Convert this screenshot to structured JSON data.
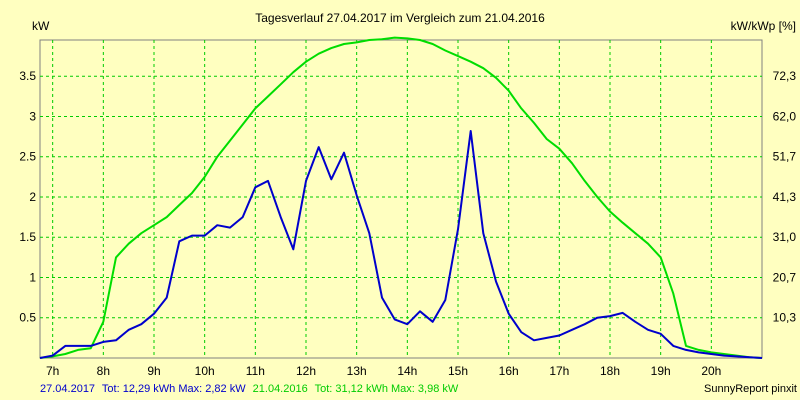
{
  "chart_data": {
    "type": "line",
    "title": "Tagesverlauf 27.04.2017 im Vergleich zum 21.04.2016",
    "ylabel_left": "kW",
    "ylabel_right": "kW/kWp [%]",
    "xlim": [
      6.75,
      21.0
    ],
    "ylim": [
      0,
      3.95
    ],
    "grid": true,
    "x_ticks": [
      7,
      8,
      9,
      10,
      11,
      12,
      13,
      14,
      15,
      16,
      17,
      18,
      19,
      20
    ],
    "x_tick_labels": [
      "7h",
      "8h",
      "9h",
      "10h",
      "11h",
      "12h",
      "13h",
      "14h",
      "15h",
      "16h",
      "17h",
      "18h",
      "19h",
      "20h"
    ],
    "y_ticks": [
      0.5,
      1,
      1.5,
      2,
      2.5,
      3,
      3.5
    ],
    "y_tick_labels": [
      "0.5",
      "1",
      "1.5",
      "2",
      "2.5",
      "3",
      "3.5"
    ],
    "y2_tick_labels": [
      "10,3",
      "20,7",
      "31,0",
      "41,3",
      "51,7",
      "62,0",
      "72,3"
    ],
    "series": [
      {
        "name": "27.04.2017",
        "color": "#0000cc",
        "x": [
          6.75,
          7.0,
          7.25,
          7.5,
          7.75,
          8.0,
          8.25,
          8.5,
          8.75,
          9.0,
          9.25,
          9.5,
          9.75,
          10.0,
          10.25,
          10.5,
          10.75,
          11.0,
          11.25,
          11.5,
          11.75,
          12.0,
          12.25,
          12.5,
          12.75,
          13.0,
          13.25,
          13.5,
          13.75,
          14.0,
          14.25,
          14.5,
          14.75,
          15.0,
          15.25,
          15.5,
          15.75,
          16.0,
          16.25,
          16.5,
          16.75,
          17.0,
          17.25,
          17.5,
          17.75,
          18.0,
          18.25,
          18.5,
          18.75,
          19.0,
          19.25,
          19.5,
          19.75,
          20.0,
          20.25,
          20.5,
          20.75,
          21.0
        ],
        "values": [
          0.0,
          0.03,
          0.15,
          0.15,
          0.15,
          0.2,
          0.22,
          0.35,
          0.42,
          0.55,
          0.75,
          1.45,
          1.52,
          1.52,
          1.65,
          1.62,
          1.75,
          2.12,
          2.2,
          1.75,
          1.35,
          2.2,
          2.62,
          2.22,
          2.55,
          2.02,
          1.55,
          0.75,
          0.48,
          0.42,
          0.58,
          0.45,
          0.72,
          1.6,
          2.82,
          1.55,
          0.95,
          0.55,
          0.32,
          0.22,
          0.25,
          0.28,
          0.35,
          0.42,
          0.5,
          0.52,
          0.56,
          0.45,
          0.35,
          0.3,
          0.15,
          0.1,
          0.07,
          0.05,
          0.03,
          0.02,
          0.01,
          0.0
        ]
      },
      {
        "name": "21.04.2016",
        "color": "#00dd00",
        "x": [
          6.75,
          7.0,
          7.25,
          7.5,
          7.75,
          8.0,
          8.25,
          8.5,
          8.75,
          9.0,
          9.25,
          9.5,
          9.75,
          10.0,
          10.25,
          10.5,
          10.75,
          11.0,
          11.25,
          11.5,
          11.75,
          12.0,
          12.25,
          12.5,
          12.75,
          13.0,
          13.25,
          13.5,
          13.75,
          14.0,
          14.25,
          14.5,
          14.75,
          15.0,
          15.25,
          15.5,
          15.75,
          16.0,
          16.25,
          16.5,
          16.75,
          17.0,
          17.25,
          17.5,
          17.75,
          18.0,
          18.25,
          18.5,
          18.75,
          19.0,
          19.25,
          19.5,
          19.75,
          20.0,
          20.25,
          20.5,
          20.75,
          21.0
        ],
        "values": [
          0.0,
          0.02,
          0.05,
          0.1,
          0.12,
          0.45,
          1.25,
          1.42,
          1.55,
          1.65,
          1.75,
          1.9,
          2.05,
          2.25,
          2.5,
          2.7,
          2.9,
          3.1,
          3.25,
          3.4,
          3.55,
          3.68,
          3.78,
          3.85,
          3.9,
          3.92,
          3.95,
          3.96,
          3.98,
          3.97,
          3.95,
          3.9,
          3.82,
          3.75,
          3.68,
          3.6,
          3.48,
          3.32,
          3.1,
          2.92,
          2.72,
          2.6,
          2.42,
          2.2,
          2.0,
          1.82,
          1.68,
          1.55,
          1.42,
          1.25,
          0.8,
          0.15,
          0.1,
          0.07,
          0.05,
          0.03,
          0.01,
          0.0
        ]
      }
    ],
    "footer": {
      "s1": {
        "date": "27.04.2017",
        "text": "Tot: 12,29 kWh Max: 2,82 kW",
        "color": "#0000cc"
      },
      "s2": {
        "date": "21.04.2016",
        "text": "Tot: 31,12 kWh Max: 3,98 kW",
        "color": "#00dd00"
      },
      "credit": "SunnyReport pinxit"
    }
  }
}
